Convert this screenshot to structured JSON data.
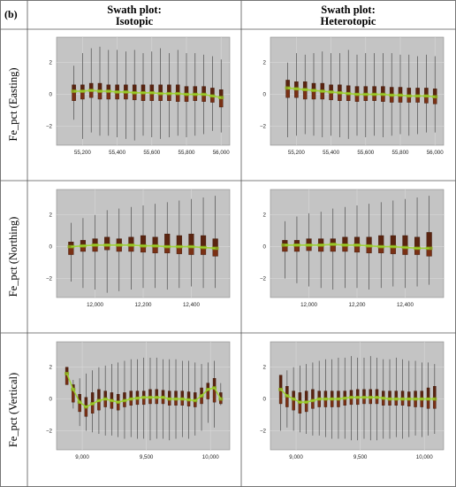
{
  "figure": {
    "panel_tag": "(b)",
    "col_headers": [
      {
        "line1": "Swath plot:",
        "line2": "Isotopic"
      },
      {
        "line1": "Swath plot:",
        "line2": "Heterotopic"
      }
    ],
    "row_labels": [
      "Fe_pct (Easting)",
      "Fe_pct (Northing)",
      "Fe_pct (Vertical)"
    ]
  },
  "chart_data": [
    {
      "type": "box",
      "row": 0,
      "col": 0,
      "xlabel": "",
      "ylabel": "",
      "x_ticks": [
        55200,
        55400,
        55600,
        55800,
        56000
      ],
      "x_tick_labels": [
        "55,200",
        "55,400",
        "55,600",
        "55,800",
        "56,000"
      ],
      "y_ticks": [
        -2,
        0,
        2
      ],
      "y_tick_labels": [
        "−2",
        "0",
        "2"
      ],
      "xlim": [
        55050,
        56050
      ],
      "ylim": [
        -3.2,
        3.6
      ],
      "x": [
        55150,
        55200,
        55250,
        55300,
        55350,
        55400,
        55450,
        55500,
        55550,
        55600,
        55650,
        55700,
        55750,
        55800,
        55850,
        55900,
        55950,
        56000
      ],
      "median": [
        0.2,
        0.2,
        0.25,
        0.2,
        0.2,
        0.15,
        0.15,
        0.1,
        0.1,
        0.1,
        0.05,
        0.05,
        0.05,
        0.0,
        0.0,
        0.0,
        -0.1,
        -0.2
      ],
      "q1": [
        -0.4,
        -0.3,
        -0.2,
        -0.3,
        -0.3,
        -0.3,
        -0.3,
        -0.35,
        -0.4,
        -0.4,
        -0.4,
        -0.4,
        -0.45,
        -0.45,
        -0.4,
        -0.45,
        -0.5,
        -0.8
      ],
      "q3": [
        0.6,
        0.6,
        0.7,
        0.7,
        0.6,
        0.6,
        0.6,
        0.6,
        0.6,
        0.6,
        0.6,
        0.6,
        0.6,
        0.5,
        0.5,
        0.5,
        0.4,
        0.3
      ],
      "whisker_low": [
        -1.6,
        -2.8,
        -2.4,
        -2.6,
        -2.6,
        -2.7,
        -2.8,
        -2.9,
        -2.6,
        -2.7,
        -2.8,
        -2.7,
        -2.6,
        -2.7,
        -2.6,
        -2.5,
        -2.3,
        -2.4
      ],
      "whisker_high": [
        1.8,
        2.6,
        2.9,
        3.0,
        2.8,
        2.8,
        2.7,
        2.8,
        2.6,
        2.7,
        2.9,
        2.6,
        2.8,
        2.6,
        2.6,
        2.5,
        2.4,
        2.2
      ]
    },
    {
      "type": "box",
      "row": 0,
      "col": 1,
      "xlabel": "",
      "ylabel": "",
      "x_ticks": [
        55200,
        55400,
        55600,
        55800,
        56000
      ],
      "x_tick_labels": [
        "55,200",
        "55,400",
        "55,600",
        "55,800",
        "56,000"
      ],
      "y_ticks": [
        -2,
        0,
        2
      ],
      "y_tick_labels": [
        "−2",
        "0",
        "2"
      ],
      "xlim": [
        55050,
        56050
      ],
      "ylim": [
        -3.2,
        3.6
      ],
      "x": [
        55150,
        55200,
        55250,
        55300,
        55350,
        55400,
        55450,
        55500,
        55550,
        55600,
        55650,
        55700,
        55750,
        55800,
        55850,
        55900,
        55950,
        56000
      ],
      "median": [
        0.4,
        0.35,
        0.3,
        0.25,
        0.2,
        0.15,
        0.1,
        0.05,
        0.0,
        0.0,
        0.0,
        0.0,
        -0.05,
        -0.05,
        -0.1,
        -0.1,
        -0.1,
        -0.15
      ],
      "q1": [
        -0.2,
        -0.2,
        -0.3,
        -0.3,
        -0.3,
        -0.35,
        -0.4,
        -0.4,
        -0.45,
        -0.4,
        -0.4,
        -0.45,
        -0.5,
        -0.5,
        -0.5,
        -0.5,
        -0.55,
        -0.6
      ],
      "q3": [
        0.9,
        0.8,
        0.8,
        0.7,
        0.7,
        0.6,
        0.6,
        0.55,
        0.5,
        0.5,
        0.5,
        0.5,
        0.45,
        0.45,
        0.4,
        0.4,
        0.4,
        0.35
      ],
      "whisker_low": [
        -2.7,
        -2.6,
        -2.5,
        -2.6,
        -2.7,
        -2.6,
        -2.7,
        -2.8,
        -2.6,
        -2.7,
        -2.6,
        -2.7,
        -2.6,
        -2.5,
        -2.6,
        -2.5,
        -2.4,
        -2.4
      ],
      "whisker_high": [
        2.0,
        2.6,
        2.5,
        2.6,
        2.7,
        2.6,
        2.6,
        2.8,
        2.5,
        2.6,
        2.6,
        2.6,
        2.6,
        2.5,
        2.5,
        2.4,
        2.5,
        2.4
      ]
    },
    {
      "type": "box",
      "row": 1,
      "col": 0,
      "xlabel": "",
      "ylabel": "",
      "x_ticks": [
        12000,
        12200,
        12400
      ],
      "x_tick_labels": [
        "12,000",
        "12,200",
        "12,400"
      ],
      "y_ticks": [
        -2,
        0,
        2
      ],
      "y_tick_labels": [
        "−2",
        "0",
        "2"
      ],
      "xlim": [
        11840,
        12560
      ],
      "ylim": [
        -3.2,
        3.6
      ],
      "x": [
        11900,
        11950,
        12000,
        12050,
        12100,
        12150,
        12200,
        12250,
        12300,
        12350,
        12400,
        12450,
        12500
      ],
      "median": [
        0.0,
        0.05,
        0.1,
        0.1,
        0.1,
        0.1,
        0.05,
        0.05,
        0.0,
        0.0,
        0.0,
        -0.05,
        -0.1
      ],
      "q1": [
        -0.5,
        -0.3,
        -0.3,
        -0.2,
        -0.3,
        -0.3,
        -0.35,
        -0.4,
        -0.4,
        -0.45,
        -0.5,
        -0.5,
        -0.6
      ],
      "q3": [
        0.3,
        0.4,
        0.5,
        0.6,
        0.5,
        0.6,
        0.7,
        0.6,
        0.8,
        0.7,
        0.8,
        0.7,
        0.5
      ],
      "whisker_low": [
        -2.2,
        -2.6,
        -2.7,
        -2.9,
        -2.8,
        -2.7,
        -2.6,
        -2.6,
        -2.7,
        -2.6,
        -2.5,
        -2.6,
        -2.6
      ],
      "whisker_high": [
        1.5,
        1.8,
        2.0,
        2.3,
        2.4,
        2.5,
        2.6,
        2.7,
        2.8,
        2.9,
        3.0,
        3.1,
        3.2
      ]
    },
    {
      "type": "box",
      "row": 1,
      "col": 1,
      "xlabel": "",
      "ylabel": "",
      "x_ticks": [
        12000,
        12200,
        12400
      ],
      "x_tick_labels": [
        "12,000",
        "12,200",
        "12,400"
      ],
      "y_ticks": [
        -2,
        0,
        2
      ],
      "y_tick_labels": [
        "−2",
        "0",
        "2"
      ],
      "xlim": [
        11840,
        12560
      ],
      "ylim": [
        -3.2,
        3.6
      ],
      "x": [
        11900,
        11950,
        12000,
        12050,
        12100,
        12150,
        12200,
        12250,
        12300,
        12350,
        12400,
        12450,
        12500
      ],
      "median": [
        0.1,
        0.1,
        0.1,
        0.1,
        0.15,
        0.1,
        0.1,
        0.05,
        0.0,
        0.0,
        -0.05,
        -0.1,
        -0.1
      ],
      "q1": [
        -0.3,
        -0.3,
        -0.25,
        -0.3,
        -0.3,
        -0.3,
        -0.35,
        -0.4,
        -0.4,
        -0.45,
        -0.5,
        -0.5,
        -0.6
      ],
      "q3": [
        0.4,
        0.4,
        0.5,
        0.5,
        0.5,
        0.6,
        0.6,
        0.6,
        0.7,
        0.7,
        0.7,
        0.6,
        0.9
      ],
      "whisker_low": [
        -2.0,
        -2.3,
        -2.5,
        -2.6,
        -2.7,
        -2.6,
        -2.6,
        -2.7,
        -2.6,
        -2.5,
        -2.6,
        -2.5,
        -2.4
      ],
      "whisker_high": [
        1.6,
        1.9,
        2.1,
        2.2,
        2.4,
        2.5,
        2.6,
        2.7,
        2.8,
        2.9,
        3.0,
        3.1,
        3.2
      ]
    },
    {
      "type": "box",
      "row": 2,
      "col": 0,
      "xlabel": "",
      "ylabel": "",
      "x_ticks": [
        9000,
        9500,
        10000
      ],
      "x_tick_labels": [
        "9,000",
        "9,500",
        "10,000"
      ],
      "y_ticks": [
        -2,
        0,
        2
      ],
      "y_tick_labels": [
        "−2",
        "0",
        "2"
      ],
      "xlim": [
        8800,
        10150
      ],
      "ylim": [
        -3.2,
        3.6
      ],
      "x": [
        8880,
        8930,
        8980,
        9030,
        9080,
        9130,
        9180,
        9230,
        9280,
        9330,
        9380,
        9430,
        9480,
        9530,
        9580,
        9630,
        9680,
        9730,
        9780,
        9830,
        9880,
        9930,
        9980,
        10030,
        10080
      ],
      "median": [
        1.6,
        0.6,
        -0.2,
        -0.5,
        -0.3,
        -0.1,
        0.0,
        -0.1,
        -0.2,
        -0.1,
        0.0,
        0.05,
        0.1,
        0.1,
        0.1,
        0.1,
        0.0,
        0.0,
        0.0,
        -0.05,
        -0.1,
        0.2,
        0.6,
        0.7,
        0.0
      ],
      "q1": [
        0.9,
        -0.2,
        -0.8,
        -1.1,
        -0.9,
        -0.7,
        -0.5,
        -0.6,
        -0.7,
        -0.5,
        -0.4,
        -0.35,
        -0.35,
        -0.3,
        -0.3,
        -0.3,
        -0.4,
        -0.4,
        -0.4,
        -0.45,
        -0.5,
        -0.3,
        0.0,
        -0.2,
        -0.3
      ],
      "q3": [
        2.0,
        0.9,
        0.3,
        0.1,
        0.4,
        0.6,
        0.5,
        0.4,
        0.3,
        0.4,
        0.5,
        0.5,
        0.5,
        0.6,
        0.6,
        0.55,
        0.5,
        0.5,
        0.5,
        0.45,
        0.4,
        0.7,
        1.0,
        1.3,
        0.4
      ],
      "whisker_low": [
        0.9,
        -0.6,
        -1.7,
        -2.0,
        -2.1,
        -2.2,
        -2.3,
        -2.3,
        -2.4,
        -2.5,
        -2.4,
        -2.5,
        -2.5,
        -2.6,
        -2.5,
        -2.5,
        -2.6,
        -2.5,
        -2.4,
        -2.5,
        -2.3,
        -2.0,
        -1.5,
        -1.8,
        -0.4
      ],
      "whisker_high": [
        2.0,
        1.2,
        1.3,
        1.6,
        1.8,
        2.0,
        2.1,
        2.2,
        2.3,
        2.4,
        2.5,
        2.5,
        2.6,
        2.6,
        2.6,
        2.5,
        2.5,
        2.5,
        2.4,
        2.4,
        2.3,
        2.2,
        2.3,
        2.4,
        1.0
      ]
    },
    {
      "type": "box",
      "row": 2,
      "col": 1,
      "xlabel": "",
      "ylabel": "",
      "x_ticks": [
        9000,
        9500,
        10000
      ],
      "x_tick_labels": [
        "9,000",
        "9,500",
        "10,000"
      ],
      "y_ticks": [
        -2,
        0,
        2
      ],
      "y_tick_labels": [
        "−2",
        "0",
        "2"
      ],
      "xlim": [
        8800,
        10150
      ],
      "ylim": [
        -3.2,
        3.6
      ],
      "x": [
        8880,
        8930,
        8980,
        9030,
        9080,
        9130,
        9180,
        9230,
        9280,
        9330,
        9380,
        9430,
        9480,
        9530,
        9580,
        9630,
        9680,
        9730,
        9780,
        9830,
        9880,
        9930,
        9980,
        10030,
        10080
      ],
      "median": [
        0.6,
        0.2,
        0.0,
        -0.2,
        -0.2,
        -0.1,
        0.0,
        0.0,
        0.0,
        0.0,
        0.05,
        0.1,
        0.1,
        0.1,
        0.1,
        0.1,
        0.05,
        0.0,
        0.0,
        0.0,
        0.0,
        0.0,
        0.0,
        0.0,
        0.0
      ],
      "q1": [
        -0.3,
        -0.5,
        -0.7,
        -0.9,
        -0.8,
        -0.6,
        -0.5,
        -0.5,
        -0.5,
        -0.5,
        -0.4,
        -0.35,
        -0.35,
        -0.3,
        -0.3,
        -0.3,
        -0.4,
        -0.4,
        -0.4,
        -0.4,
        -0.45,
        -0.5,
        -0.5,
        -0.6,
        -0.6
      ],
      "q3": [
        1.5,
        0.8,
        0.5,
        0.4,
        0.5,
        0.6,
        0.5,
        0.5,
        0.5,
        0.5,
        0.5,
        0.55,
        0.6,
        0.6,
        0.6,
        0.6,
        0.5,
        0.5,
        0.5,
        0.5,
        0.45,
        0.5,
        0.5,
        0.7,
        0.8
      ],
      "whisker_low": [
        -2.0,
        -1.8,
        -2.0,
        -2.1,
        -2.2,
        -2.3,
        -2.3,
        -2.4,
        -2.5,
        -2.5,
        -2.5,
        -2.6,
        -2.6,
        -2.5,
        -2.6,
        -2.6,
        -2.5,
        -2.5,
        -2.4,
        -2.5,
        -2.4,
        -2.3,
        -2.4,
        -2.3,
        -2.2
      ],
      "whisker_high": [
        1.5,
        1.8,
        2.0,
        2.1,
        2.2,
        2.3,
        2.4,
        2.5,
        2.5,
        2.6,
        2.6,
        2.7,
        2.6,
        2.6,
        2.7,
        2.6,
        2.5,
        2.5,
        2.6,
        2.5,
        2.4,
        2.4,
        2.3,
        2.3,
        2.2
      ]
    }
  ]
}
